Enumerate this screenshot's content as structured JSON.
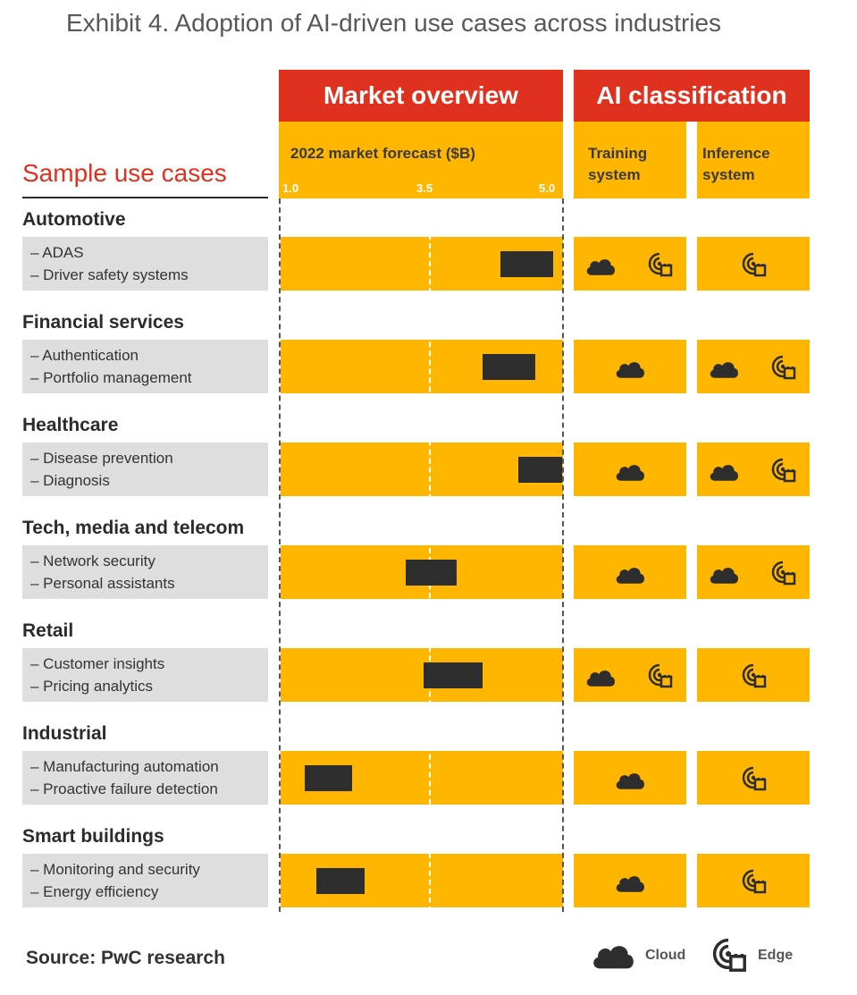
{
  "title": "Exhibit 4. Adoption of AI-driven use cases across industries",
  "headers": {
    "market_overview": "Market overview",
    "ai_classification": "AI classification",
    "forecast": "2022 market forecast ($B)",
    "training": [
      "Training",
      "system"
    ],
    "inference": [
      "Inference",
      "system"
    ],
    "sample_use_cases": "Sample use cases"
  },
  "source": "Source: PwC research",
  "legend": {
    "cloud": "Cloud",
    "edge": "Edge"
  },
  "colors": {
    "red": "#e0301e",
    "gold": "#ffb600",
    "bar": "#2d2d2d",
    "grey": "#dedede"
  },
  "chart_data": {
    "type": "bar",
    "title": "Exhibit 4. Adoption of AI-driven use cases across industries",
    "xlabel": "2022 market forecast ($B)",
    "xticks": [
      "1.0",
      "3.5",
      "5.0"
    ],
    "xlim": [
      1.0,
      5.0
    ],
    "axis_note": "non-linear scale: 1.0 at left edge, 3.5 at midline, 5.0 at right edge",
    "categories": [
      "Automotive",
      "Financial services",
      "Healthcare",
      "Tech, media and telecom",
      "Retail",
      "Industrial",
      "Smart buildings"
    ],
    "ranges": [
      {
        "low": 4.3,
        "high": 4.9
      },
      {
        "low": 4.1,
        "high": 4.7
      },
      {
        "low": 4.5,
        "high": 5.0
      },
      {
        "low": 3.1,
        "high": 3.8
      },
      {
        "low": 3.4,
        "high": 4.1
      },
      {
        "low": 1.4,
        "high": 2.2
      },
      {
        "low": 1.6,
        "high": 2.4
      }
    ],
    "rows": [
      {
        "category": "Automotive",
        "uses": [
          "– ADAS",
          "– Driver safety systems"
        ],
        "training": [
          "cloud",
          "edge"
        ],
        "inference": [
          "edge"
        ]
      },
      {
        "category": "Financial services",
        "uses": [
          "– Authentication",
          "– Portfolio management"
        ],
        "training": [
          "cloud"
        ],
        "inference": [
          "cloud",
          "edge"
        ]
      },
      {
        "category": "Healthcare",
        "uses": [
          "– Disease prevention",
          "– Diagnosis"
        ],
        "training": [
          "cloud"
        ],
        "inference": [
          "cloud",
          "edge"
        ]
      },
      {
        "category": "Tech, media and telecom",
        "uses": [
          "– Network security",
          "– Personal assistants"
        ],
        "training": [
          "cloud"
        ],
        "inference": [
          "cloud",
          "edge"
        ]
      },
      {
        "category": "Retail",
        "uses": [
          "– Customer insights",
          "– Pricing analytics"
        ],
        "training": [
          "cloud",
          "edge"
        ],
        "inference": [
          "edge"
        ]
      },
      {
        "category": "Industrial",
        "uses": [
          "– Manufacturing  automation",
          "– Proactive failure detection"
        ],
        "training": [
          "cloud"
        ],
        "inference": [
          "edge"
        ]
      },
      {
        "category": "Smart buildings",
        "uses": [
          "– Monitoring  and security",
          "– Energy efficiency"
        ],
        "training": [
          "cloud"
        ],
        "inference": [
          "edge"
        ]
      }
    ]
  }
}
